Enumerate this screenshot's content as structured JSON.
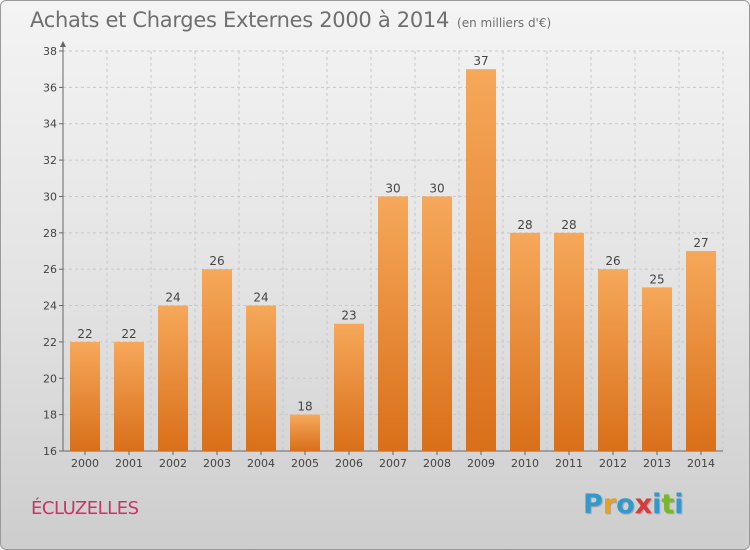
{
  "title": "Achats et Charges Externes 2000 à 2014",
  "unit": "(en milliers d'€)",
  "commune": "ÉCLUZELLES",
  "logo": {
    "letters": [
      "P",
      "r",
      "o",
      "x",
      "i",
      "t",
      "i"
    ],
    "colors": [
      "#3399cc",
      "#e8a020",
      "#3399cc",
      "#d93a3a",
      "#3399cc",
      "#7ab829",
      "#3399cc"
    ]
  },
  "colors": {
    "bar_light": "#f6a85a",
    "bar_dark": "#d96f19",
    "grid": "#c8c8c8",
    "title": "#6f6f6f",
    "commune": "#cc3366"
  },
  "chart_data": {
    "type": "bar",
    "title": "Achats et Charges Externes 2000 à 2014",
    "categories": [
      "2000",
      "2001",
      "2002",
      "2003",
      "2004",
      "2005",
      "2006",
      "2007",
      "2008",
      "2009",
      "2010",
      "2011",
      "2012",
      "2013",
      "2014"
    ],
    "values": [
      22,
      22,
      24,
      26,
      24,
      18,
      23,
      30,
      30,
      37,
      28,
      28,
      26,
      25,
      27
    ],
    "xlabel": "",
    "ylabel": "",
    "ylim": [
      16,
      38
    ],
    "yticks": [
      16,
      18,
      20,
      22,
      24,
      26,
      28,
      30,
      32,
      34,
      36,
      38
    ],
    "grid": true,
    "legend": "none"
  }
}
